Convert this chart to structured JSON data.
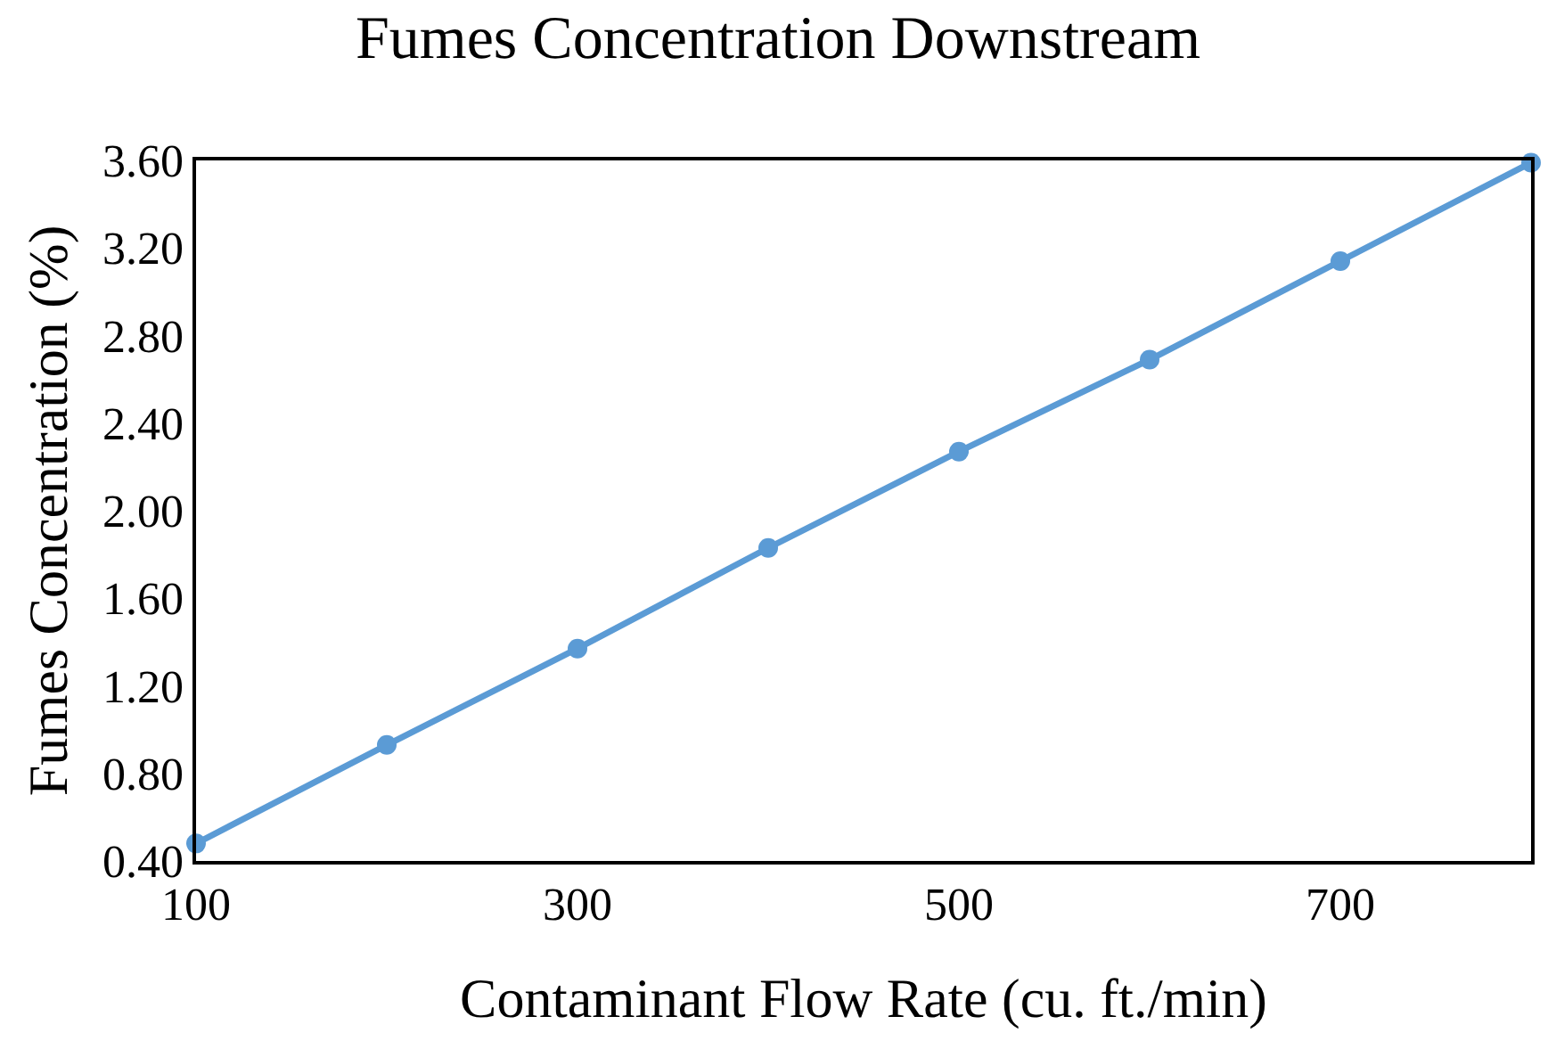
{
  "chart_data": {
    "type": "line",
    "title": "Fumes Concentration Downstream",
    "xlabel": "Contaminant Flow Rate (cu. ft./min)",
    "ylabel": "Fumes Concentration (%)",
    "x": [
      100,
      200,
      300,
      400,
      500,
      600,
      700,
      800
    ],
    "series": [
      {
        "color": "#5b9bd5",
        "values": [
          0.48,
          0.93,
          1.37,
          1.83,
          2.27,
          2.69,
          3.14,
          3.59
        ]
      }
    ],
    "xlim": [
      100,
      800
    ],
    "xticks": [
      100,
      300,
      500,
      700
    ],
    "ylim": [
      0.4,
      3.6
    ],
    "yticks": [
      {
        "value": 0.4,
        "label": "0.40"
      },
      {
        "value": 0.8,
        "label": "0.80"
      },
      {
        "value": 1.2,
        "label": "1.20"
      },
      {
        "value": 1.6,
        "label": "1.60"
      },
      {
        "value": 2.0,
        "label": "2.00"
      },
      {
        "value": 2.4,
        "label": "2.40"
      },
      {
        "value": 2.8,
        "label": "2.80"
      },
      {
        "value": 3.2,
        "label": "3.20"
      },
      {
        "value": 3.6,
        "label": "3.60"
      }
    ],
    "legend": false,
    "marker": "circle",
    "line_style": "solid"
  }
}
